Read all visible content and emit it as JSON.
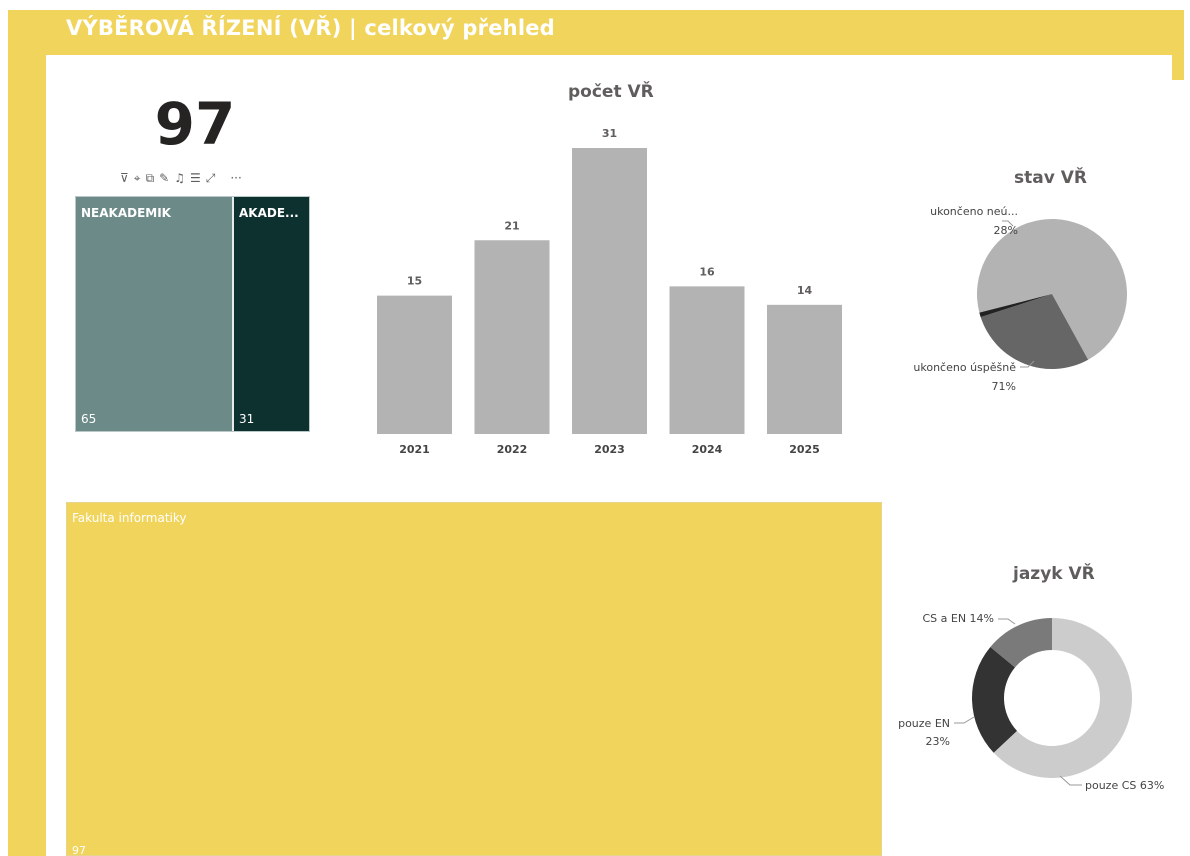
{
  "header": {
    "title": "VÝBĚROVÁ ŘÍZENÍ (VŘ) | celkový přehled"
  },
  "colors": {
    "accent": "#f0d45c",
    "teal_light": "#6c8b88",
    "teal_dark": "#0d312f",
    "bar": "#b3b3b3"
  },
  "kpi": {
    "value": "97"
  },
  "visual_toolbar": {
    "icons": [
      "filter-icon",
      "pin-icon",
      "copy-icon",
      "comment-icon",
      "bell-icon",
      "filter-list-icon",
      "focus-mode-icon",
      "more-options-icon"
    ],
    "more": "···"
  },
  "treemap_small": {
    "items": [
      {
        "label": "NEAKADEMIK",
        "value": "65"
      },
      {
        "label": "AKADE...",
        "value": "31"
      }
    ]
  },
  "bar_chart": {
    "title": "počet VŘ"
  },
  "pie_chart": {
    "title": "stav VŘ"
  },
  "donut_chart": {
    "title": "jazyk VŘ"
  },
  "treemap_big": {
    "label": "Fakulta informatiky",
    "value": "97"
  },
  "chart_data": [
    {
      "type": "bar",
      "title": "počet VŘ",
      "categories": [
        "2021",
        "2022",
        "2023",
        "2024",
        "2025"
      ],
      "values": [
        15,
        21,
        31,
        16,
        14
      ],
      "ylim": [
        0,
        31
      ],
      "grid": false,
      "bar_color": "#b3b3b3"
    },
    {
      "type": "pie",
      "title": "stav VŘ",
      "slices": [
        {
          "label": "ukončeno úspěšně",
          "pct_text": "71%",
          "value": 71,
          "color": "#b3b3b3"
        },
        {
          "label": "ukončeno neú...",
          "pct_text": "28%",
          "value": 28,
          "color": "#666666"
        },
        {
          "label": "",
          "pct_text": "",
          "value": 1,
          "color": "#222222"
        }
      ]
    },
    {
      "type": "pie",
      "subtype": "donut",
      "title": "jazyk VŘ",
      "slices": [
        {
          "label": "pouze CS 63%",
          "value": 63,
          "color": "#cccccc"
        },
        {
          "label": "pouze EN",
          "pct_text": "23%",
          "value": 23,
          "color": "#333333"
        },
        {
          "label": "CS a EN 14%",
          "value": 14,
          "color": "#7a7a7a"
        }
      ]
    }
  ]
}
